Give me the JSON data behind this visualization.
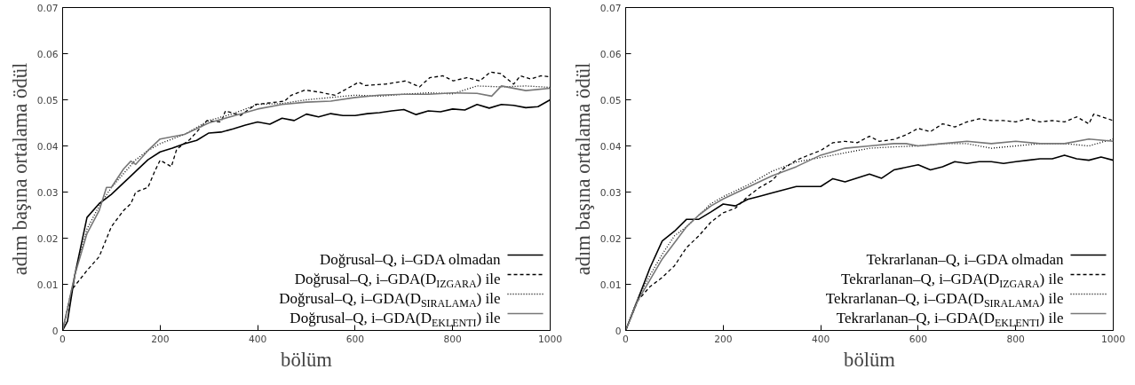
{
  "chart_data": [
    {
      "type": "line",
      "xlabel": "bölüm",
      "ylabel": "adım başına ortalama ödül",
      "xlim": [
        0,
        1000
      ],
      "ylim": [
        0,
        0.07
      ],
      "xticks": [
        0,
        200,
        400,
        600,
        800,
        1000
      ],
      "yticks": [
        0,
        0.01,
        0.02,
        0.03,
        0.04,
        0.05,
        0.06,
        0.07
      ],
      "legend": "bottom right",
      "grid": false,
      "series": [
        {
          "name": "Doğrusal–Q, i–GDA olmadan",
          "color": "#000000",
          "line_style": "solid",
          "x": [
            0,
            10,
            25,
            50,
            75,
            100,
            125,
            140,
            150,
            175,
            200,
            225,
            250,
            275,
            300,
            325,
            350,
            375,
            400,
            425,
            450,
            475,
            500,
            525,
            550,
            575,
            600,
            625,
            650,
            675,
            700,
            725,
            750,
            775,
            800,
            825,
            850,
            875,
            900,
            925,
            950,
            975,
            1000
          ],
          "values": [
            0,
            0.002,
            0.012,
            0.0245,
            0.0275,
            0.0295,
            0.032,
            0.0335,
            0.0345,
            0.037,
            0.0387,
            0.0395,
            0.0405,
            0.0412,
            0.0428,
            0.043,
            0.0437,
            0.0445,
            0.0452,
            0.0447,
            0.046,
            0.0455,
            0.0469,
            0.0463,
            0.047,
            0.0466,
            0.0466,
            0.047,
            0.0472,
            0.0476,
            0.0479,
            0.0468,
            0.0476,
            0.0474,
            0.048,
            0.0478,
            0.049,
            0.0482,
            0.049,
            0.0488,
            0.0483,
            0.0485,
            0.05
          ]
        },
        {
          "name": "Doğrusal–Q, i–GDA(D$_{IZGARA}$) ile",
          "color": "#000000",
          "line_style": "dashed",
          "x": [
            0,
            20,
            50,
            75,
            100,
            125,
            140,
            150,
            175,
            189,
            200,
            223,
            234,
            261,
            296,
            325,
            334,
            365,
            396,
            455,
            469,
            497,
            524,
            559,
            607,
            621,
            662,
            704,
            732,
            753,
            780,
            801,
            829,
            856,
            877,
            898,
            925,
            939,
            960,
            981,
            1000
          ],
          "values": [
            0,
            0.009,
            0.013,
            0.016,
            0.0225,
            0.026,
            0.0275,
            0.03,
            0.031,
            0.0345,
            0.0369,
            0.0355,
            0.0393,
            0.0414,
            0.0455,
            0.0452,
            0.0476,
            0.0466,
            0.049,
            0.0497,
            0.051,
            0.0521,
            0.0517,
            0.051,
            0.0538,
            0.0531,
            0.0534,
            0.0541,
            0.0528,
            0.0548,
            0.0552,
            0.0541,
            0.0548,
            0.0541,
            0.056,
            0.0557,
            0.0534,
            0.0552,
            0.0545,
            0.0552,
            0.055
          ]
        },
        {
          "name": "Doğrusal–Q, i–GDA(D$_{SIRALAMA}$) ile",
          "color": "#000000",
          "line_style": "dotted",
          "x": [
            0,
            25,
            50,
            75,
            100,
            125,
            150,
            175,
            200,
            250,
            300,
            350,
            400,
            450,
            500,
            550,
            600,
            650,
            700,
            750,
            800,
            850,
            900,
            950,
            1000
          ],
          "values": [
            0,
            0.012,
            0.022,
            0.027,
            0.031,
            0.034,
            0.037,
            0.039,
            0.0405,
            0.0425,
            0.0455,
            0.047,
            0.049,
            0.0492,
            0.05,
            0.0505,
            0.051,
            0.0508,
            0.0512,
            0.0515,
            0.0513,
            0.053,
            0.0528,
            0.053,
            0.0527
          ]
        },
        {
          "name": "Doğrusal–Q, i–GDA(D$_{EKLENTI}$) ile",
          "color": "#777777",
          "line_style": "solid",
          "x": [
            0,
            25,
            50,
            75,
            90,
            100,
            125,
            140,
            150,
            175,
            200,
            250,
            300,
            350,
            400,
            450,
            500,
            550,
            600,
            650,
            700,
            750,
            800,
            850,
            880,
            900,
            950,
            1000
          ],
          "values": [
            0,
            0.012,
            0.021,
            0.026,
            0.031,
            0.031,
            0.035,
            0.0367,
            0.036,
            0.039,
            0.0415,
            0.0425,
            0.045,
            0.0465,
            0.048,
            0.049,
            0.0495,
            0.0497,
            0.0505,
            0.051,
            0.0512,
            0.0512,
            0.0515,
            0.0514,
            0.0508,
            0.053,
            0.052,
            0.0525
          ]
        }
      ]
    },
    {
      "type": "line",
      "xlabel": "bölüm",
      "ylabel": "adım başına ortalama ödül",
      "xlim": [
        0,
        1000
      ],
      "ylim": [
        0,
        0.07
      ],
      "xticks": [
        0,
        200,
        400,
        600,
        800,
        1000
      ],
      "yticks": [
        0,
        0.01,
        0.02,
        0.03,
        0.04,
        0.05,
        0.06,
        0.07
      ],
      "legend": "bottom right",
      "grid": false,
      "series": [
        {
          "name": "Tekrarlanan–Q, i–GDA olmadan",
          "color": "#000000",
          "line_style": "solid",
          "x": [
            0,
            25,
            50,
            75,
            100,
            125,
            150,
            175,
            200,
            225,
            250,
            275,
            300,
            350,
            400,
            425,
            450,
            500,
            525,
            550,
            600,
            625,
            650,
            675,
            700,
            725,
            750,
            775,
            800,
            825,
            850,
            875,
            900,
            925,
            950,
            975,
            1000
          ],
          "values": [
            0,
            0.0067,
            0.0136,
            0.0194,
            0.0215,
            0.0241,
            0.0241,
            0.0257,
            0.0274,
            0.027,
            0.0284,
            0.0291,
            0.0298,
            0.0312,
            0.0312,
            0.0329,
            0.0322,
            0.0339,
            0.033,
            0.0348,
            0.0359,
            0.0348,
            0.0355,
            0.0366,
            0.0362,
            0.0366,
            0.0366,
            0.0362,
            0.0366,
            0.0369,
            0.0372,
            0.0372,
            0.038,
            0.0372,
            0.0369,
            0.0376,
            0.0369
          ]
        },
        {
          "name": "Tekrarlanan–Q, i–GDA(D$_{IZGARA}$) ile",
          "color": "#000000",
          "line_style": "dashed",
          "x": [
            0,
            25,
            50,
            75,
            100,
            125,
            150,
            175,
            200,
            225,
            250,
            275,
            300,
            325,
            350,
            375,
            400,
            425,
            450,
            475,
            500,
            520,
            550,
            575,
            600,
            625,
            650,
            675,
            700,
            725,
            750,
            775,
            800,
            825,
            850,
            875,
            900,
            925,
            950,
            960,
            1000
          ],
          "values": [
            0,
            0.0065,
            0.0095,
            0.0115,
            0.014,
            0.018,
            0.0205,
            0.0235,
            0.0255,
            0.0265,
            0.029,
            0.031,
            0.0325,
            0.0352,
            0.0369,
            0.038,
            0.039,
            0.0407,
            0.041,
            0.0407,
            0.0421,
            0.041,
            0.0414,
            0.0424,
            0.0438,
            0.0431,
            0.0448,
            0.0441,
            0.0452,
            0.0459,
            0.0455,
            0.0455,
            0.0452,
            0.0459,
            0.0452,
            0.0455,
            0.0452,
            0.0463,
            0.0448,
            0.0469,
            0.0455
          ]
        },
        {
          "name": "Tekrarlanan–Q, i–GDA(D$_{SIRALAMA}$) ile",
          "color": "#000000",
          "line_style": "dotted",
          "x": [
            0,
            25,
            50,
            75,
            100,
            125,
            150,
            175,
            200,
            250,
            300,
            350,
            400,
            450,
            500,
            550,
            600,
            650,
            700,
            750,
            800,
            850,
            900,
            950,
            1000
          ],
          "values": [
            0,
            0.007,
            0.012,
            0.0165,
            0.0205,
            0.0225,
            0.025,
            0.0275,
            0.029,
            0.0315,
            0.0345,
            0.0365,
            0.0375,
            0.0385,
            0.0395,
            0.0398,
            0.04,
            0.0405,
            0.0405,
            0.0395,
            0.04,
            0.0405,
            0.0405,
            0.04,
            0.0415
          ]
        },
        {
          "name": "Tekrarlanan–Q, i–GDA(D$_{EKLENTI}$) ile",
          "color": "#777777",
          "line_style": "solid",
          "x": [
            0,
            25,
            50,
            75,
            100,
            125,
            150,
            175,
            200,
            250,
            300,
            350,
            400,
            450,
            500,
            550,
            575,
            600,
            650,
            700,
            750,
            800,
            850,
            900,
            950,
            1000
          ],
          "values": [
            0,
            0.0065,
            0.011,
            0.0155,
            0.019,
            0.0225,
            0.025,
            0.027,
            0.0285,
            0.031,
            0.0335,
            0.0355,
            0.038,
            0.0395,
            0.04,
            0.0405,
            0.0405,
            0.04,
            0.0405,
            0.041,
            0.0405,
            0.041,
            0.0405,
            0.0405,
            0.0415,
            0.041
          ]
        }
      ]
    }
  ]
}
